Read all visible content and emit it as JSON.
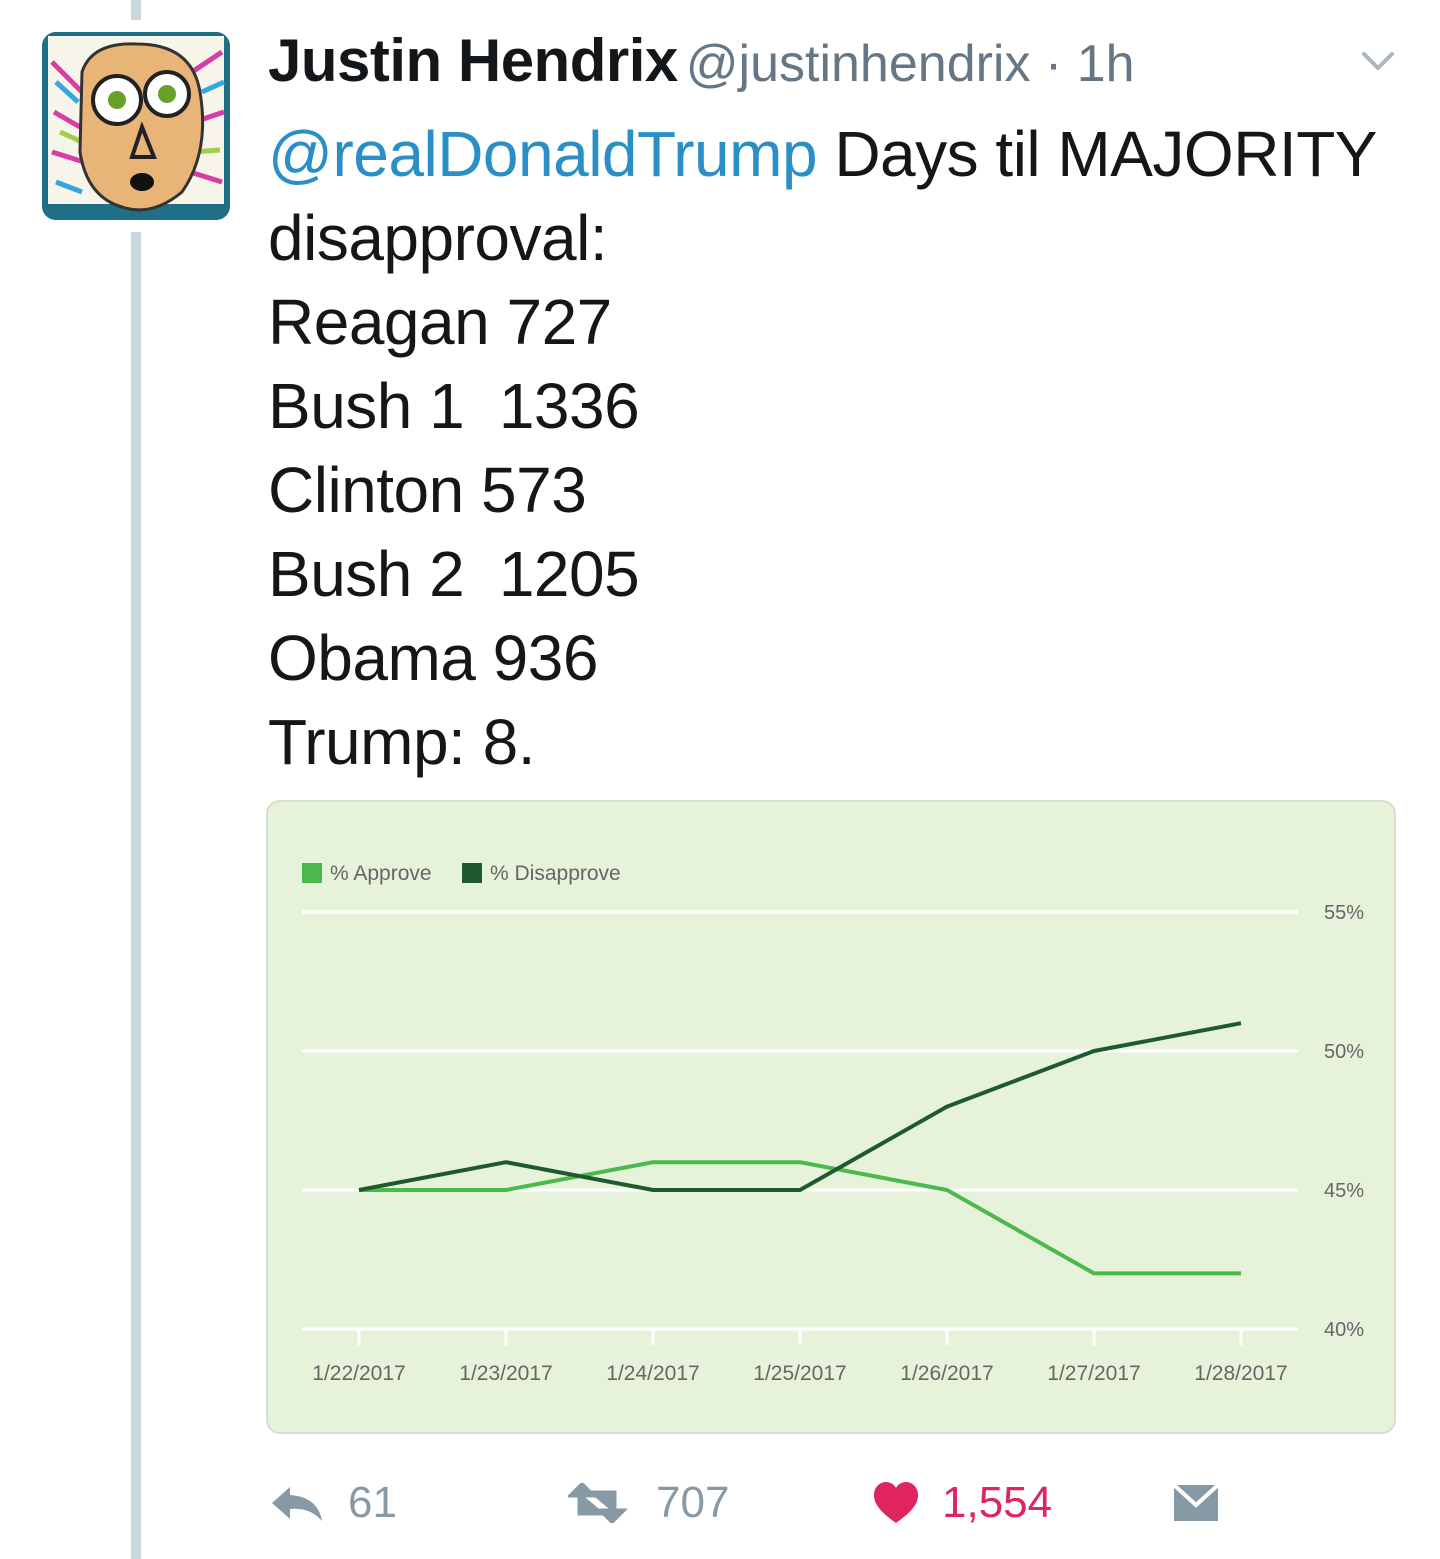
{
  "tweet": {
    "author_name": "Justin Hendrix",
    "handle": "@justinhendrix",
    "time": " · 1h",
    "mention": "@realDonaldTrump",
    "lines": [
      " Days til MAJORITY",
      "disapproval:",
      "Reagan 727",
      "Bush 1  1336",
      "Clinton 573",
      "Bush 2  1205",
      "Obama 936",
      "Trump: 8."
    ]
  },
  "chart_data": {
    "type": "line",
    "x": [
      "1/22/2017",
      "1/23/2017",
      "1/24/2017",
      "1/25/2017",
      "1/26/2017",
      "1/27/2017",
      "1/28/2017"
    ],
    "series": [
      {
        "name": "% Approve",
        "color": "#4cb94e",
        "values": [
          45,
          45,
          46,
          46,
          45,
          42,
          42
        ]
      },
      {
        "name": "% Disapprove",
        "color": "#1f5a2e",
        "values": [
          45,
          46,
          45,
          45,
          48,
          50,
          51
        ]
      }
    ],
    "yticks": [
      "55%",
      "50%",
      "45%",
      "40%"
    ],
    "ylim": [
      40,
      55
    ],
    "legend": "top-left",
    "grid": true
  },
  "actions": {
    "reply_count": "61",
    "retweet_count": "707",
    "like_count": "1,554"
  },
  "colors": {
    "link": "#2b8fc7",
    "like": "#e0245e",
    "muted": "#8899a6",
    "card_bg": "#e6f2d9"
  },
  "icons": {
    "reply": "reply-icon",
    "retweet": "retweet-icon",
    "like": "heart-icon",
    "dm": "envelope-icon",
    "menu": "chevron-down-icon"
  }
}
